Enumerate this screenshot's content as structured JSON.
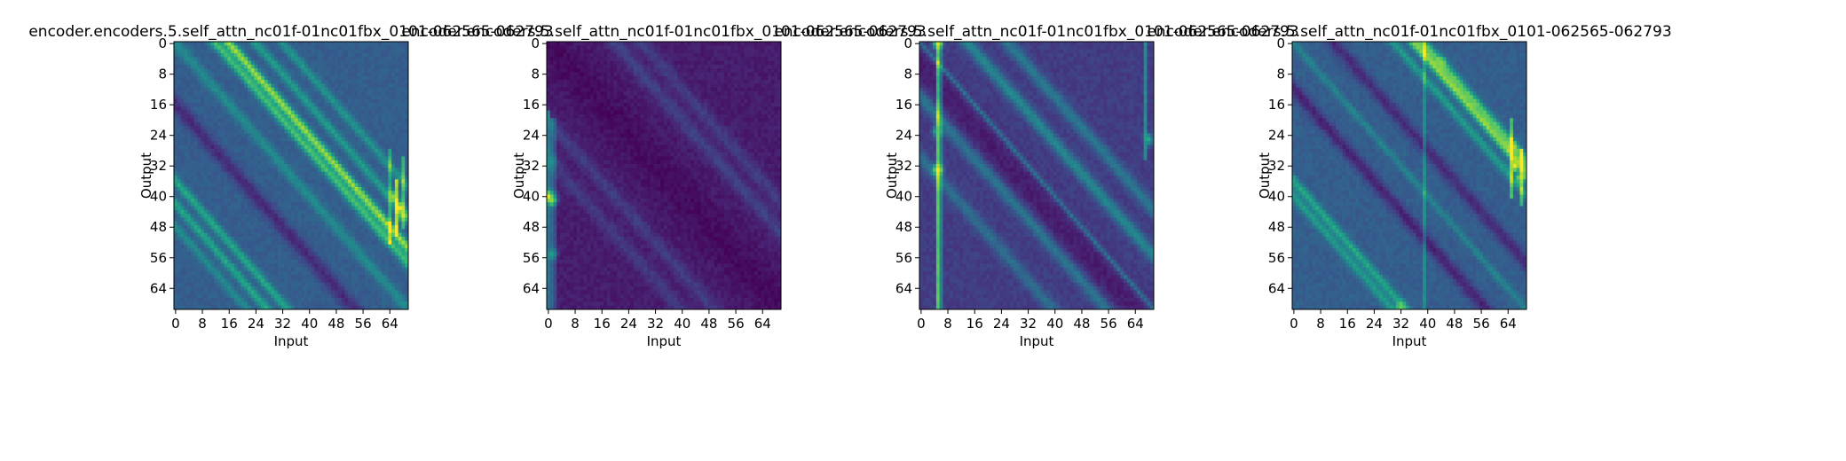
{
  "chart_data": [
    {
      "type": "heatmap",
      "title": "encoder.encoders.5.self_attn_nc01f-01nc01fbx_0101-062565-062793",
      "xlabel": "Input",
      "ylabel": "Output",
      "x_ticks": [
        0,
        8,
        16,
        24,
        32,
        40,
        48,
        56,
        64
      ],
      "y_ticks": [
        0,
        8,
        16,
        24,
        32,
        40,
        48,
        56,
        64
      ],
      "n_input": 70,
      "n_output": 70,
      "colormap": "viridis",
      "value_range": [
        0,
        1
      ],
      "pattern": {
        "base": 0.3,
        "diagonals": [
          {
            "offset": 0,
            "strength": 0.18,
            "width": 1.5
          },
          {
            "offset": -12,
            "strength": 0.4,
            "width": 1.3
          },
          {
            "offset": -16,
            "strength": 0.55,
            "width": 1.3
          },
          {
            "offset": -24,
            "strength": 0.25,
            "width": 1.2
          },
          {
            "offset": -32,
            "strength": 0.22,
            "width": 1.2
          },
          {
            "offset": 16,
            "strength": -0.18,
            "width": 2.0
          },
          {
            "offset": 36,
            "strength": 0.3,
            "width": 1.2
          },
          {
            "offset": 42,
            "strength": 0.3,
            "width": 1.2
          },
          {
            "offset": 48,
            "strength": 0.18,
            "width": 1.2
          }
        ],
        "columns": [
          {
            "index": 64,
            "strength": 0.3,
            "rows": [
              28,
              52
            ]
          },
          {
            "index": 66,
            "strength": 0.55,
            "rows": [
              36,
              50
            ]
          },
          {
            "index": 68,
            "strength": 0.35,
            "rows": [
              30,
              48
            ]
          }
        ],
        "hotspots": [
          {
            "row": 43,
            "col": 67,
            "value": 0.97
          },
          {
            "row": 45,
            "col": 68,
            "value": 0.92
          },
          {
            "row": 40,
            "col": 65,
            "value": 0.85
          }
        ]
      }
    },
    {
      "type": "heatmap",
      "title": "encoder.encoders.5.self_attn_nc01f-01nc01fbx_0101-062565-062793",
      "xlabel": "Input",
      "ylabel": "Output",
      "x_ticks": [
        0,
        8,
        16,
        24,
        32,
        40,
        48,
        56,
        64
      ],
      "y_ticks": [
        0,
        8,
        16,
        24,
        32,
        40,
        48,
        56,
        64
      ],
      "n_input": 70,
      "n_output": 70,
      "colormap": "viridis",
      "value_range": [
        0,
        1
      ],
      "pattern": {
        "base": 0.08,
        "diagonals": [
          {
            "offset": 0,
            "strength": -0.05,
            "width": 6.0
          },
          {
            "offset": -20,
            "strength": 0.12,
            "width": 2.0
          },
          {
            "offset": -28,
            "strength": 0.1,
            "width": 2.0
          },
          {
            "offset": 20,
            "strength": 0.1,
            "width": 2.0
          },
          {
            "offset": 30,
            "strength": 0.09,
            "width": 2.0
          }
        ],
        "columns": [
          {
            "index": 0,
            "strength": 0.3,
            "rows": [
              18,
              70
            ]
          },
          {
            "index": 1,
            "strength": 0.25,
            "rows": [
              20,
              70
            ]
          },
          {
            "index": 2,
            "strength": 0.15,
            "rows": [
              20,
              70
            ]
          }
        ],
        "hotspots": [
          {
            "row": 40,
            "col": 0,
            "value": 0.98
          },
          {
            "row": 41,
            "col": 1,
            "value": 0.85
          },
          {
            "row": 55,
            "col": 1,
            "value": 0.55
          },
          {
            "row": 31,
            "col": 1,
            "value": 0.5
          }
        ]
      }
    },
    {
      "type": "heatmap",
      "title": "encoder.encoders.5.self_attn_nc01f-01nc01fbx_0101-062565-062793",
      "xlabel": "Input",
      "ylabel": "Output",
      "x_ticks": [
        0,
        8,
        16,
        24,
        32,
        40,
        48,
        56,
        64
      ],
      "y_ticks": [
        0,
        8,
        16,
        24,
        32,
        40,
        48,
        56,
        64
      ],
      "n_input": 70,
      "n_output": 70,
      "colormap": "viridis",
      "value_range": [
        0,
        1
      ],
      "pattern": {
        "base": 0.18,
        "diagonals": [
          {
            "offset": 0,
            "strength": 0.22,
            "width": 0.7
          },
          {
            "offset": -14,
            "strength": 0.28,
            "width": 1.8
          },
          {
            "offset": -26,
            "strength": 0.22,
            "width": 1.8
          },
          {
            "offset": 14,
            "strength": 0.22,
            "width": 1.8
          },
          {
            "offset": 30,
            "strength": 0.18,
            "width": 1.8
          },
          {
            "offset": 6,
            "strength": -0.1,
            "width": 4.0
          }
        ],
        "columns": [
          {
            "index": 5,
            "strength": 0.55,
            "rows": [
              0,
              70
            ]
          },
          {
            "index": 6,
            "strength": 0.25,
            "rows": [
              0,
              70
            ]
          },
          {
            "index": 67,
            "strength": 0.3,
            "rows": [
              0,
              30
            ]
          }
        ],
        "hotspots": [
          {
            "row": 33,
            "col": 5,
            "value": 0.98
          },
          {
            "row": 0,
            "col": 5,
            "value": 0.95
          },
          {
            "row": 23,
            "col": 5,
            "value": 0.7
          },
          {
            "row": 25,
            "col": 68,
            "value": 0.6
          }
        ]
      }
    },
    {
      "type": "heatmap",
      "title": "encoder.encoders.5.self_attn_nc01f-01nc01fbx_0101-062565-062793",
      "xlabel": "Input",
      "ylabel": "Output",
      "x_ticks": [
        0,
        8,
        16,
        24,
        32,
        40,
        48,
        56,
        64
      ],
      "y_ticks": [
        0,
        8,
        16,
        24,
        32,
        40,
        48,
        56,
        64
      ],
      "n_input": 70,
      "n_output": 70,
      "colormap": "viridis",
      "value_range": [
        0,
        1
      ],
      "pattern": {
        "base": 0.3,
        "diagonals": [
          {
            "offset": -36,
            "strength": 0.5,
            "width": 1.3
          },
          {
            "offset": -39,
            "strength": 0.4,
            "width": 1.3
          },
          {
            "offset": -30,
            "strength": 0.25,
            "width": 1.2
          },
          {
            "offset": 0,
            "strength": 0.15,
            "width": 1.0
          },
          {
            "offset": 12,
            "strength": -0.2,
            "width": 1.8
          },
          {
            "offset": 36,
            "strength": 0.3,
            "width": 1.2
          },
          {
            "offset": 40,
            "strength": 0.25,
            "width": 1.2
          },
          {
            "offset": -12,
            "strength": -0.18,
            "width": 1.8
          }
        ],
        "columns": [
          {
            "index": 39,
            "strength": 0.2,
            "rows": [
              0,
              70
            ]
          },
          {
            "index": 65,
            "strength": 0.4,
            "rows": [
              20,
              40
            ]
          },
          {
            "index": 68,
            "strength": 0.35,
            "rows": [
              28,
              42
            ]
          }
        ],
        "hotspots": [
          {
            "row": 32,
            "col": 66,
            "value": 0.98
          },
          {
            "row": 35,
            "col": 68,
            "value": 0.95
          },
          {
            "row": 27,
            "col": 65,
            "value": 0.9
          },
          {
            "row": 5,
            "col": 44,
            "value": 0.85
          },
          {
            "row": 69,
            "col": 32,
            "value": 0.8
          }
        ]
      }
    }
  ]
}
